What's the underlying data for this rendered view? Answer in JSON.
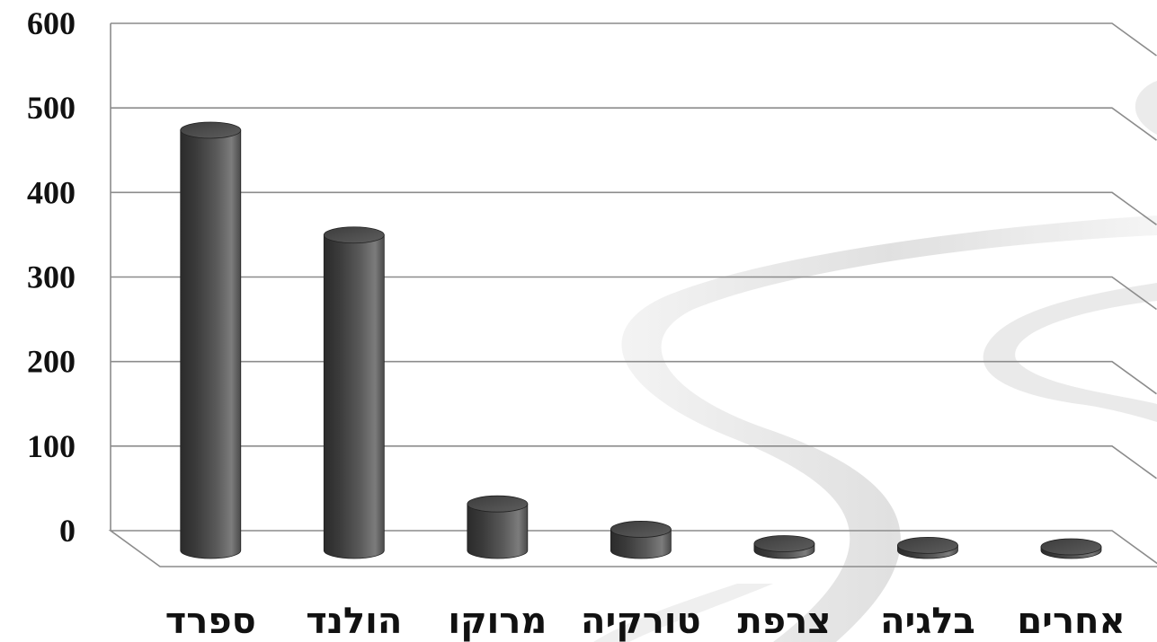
{
  "chart_data": {
    "type": "bar",
    "style": "3d-cylinder",
    "categories": [
      "ספרד",
      "הולנד",
      "מרוקו",
      "טורקיה",
      "צרפת",
      "בלגיה",
      "אחרים"
    ],
    "values": [
      497,
      373,
      55,
      25,
      8,
      6,
      4
    ],
    "ylim": [
      0,
      600
    ],
    "yticks": [
      0,
      100,
      200,
      300,
      400,
      500,
      600
    ],
    "title": "",
    "xlabel": "",
    "ylabel": "",
    "grid": true,
    "legend": "none",
    "colors": {
      "bar_dark": "#2e2e2e",
      "bar_mid": "#6a6a6a",
      "bar_light": "#8a8a8a",
      "bar_top": "#555555",
      "grid": "#8c8c8c",
      "swirl": "#e6e6e6"
    }
  }
}
